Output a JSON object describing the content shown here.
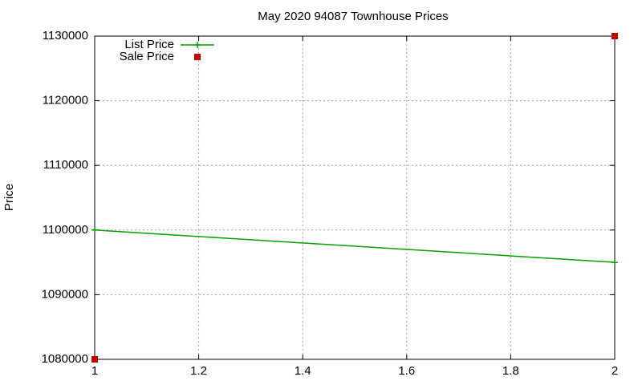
{
  "chart_data": {
    "type": "line",
    "title": "May 2020 94087 Townhouse Prices",
    "y_label": "Price",
    "x": [
      1,
      2
    ],
    "series": [
      {
        "name": "List Price",
        "color": "#00a000",
        "mode": "lines+points",
        "values": [
          1100000,
          1095000
        ]
      },
      {
        "name": "Sale Price",
        "color": "#c00000",
        "mode": "points",
        "values": [
          1080000,
          1130000
        ]
      }
    ],
    "xlim": [
      1,
      2
    ],
    "xticks": [
      1,
      1.2,
      1.4,
      1.6,
      1.8,
      2
    ],
    "ylim": [
      1080000,
      1130000
    ],
    "yticks": [
      1080000,
      1090000,
      1100000,
      1110000,
      1120000,
      1130000
    ],
    "grid": true,
    "legend": "top-left"
  }
}
